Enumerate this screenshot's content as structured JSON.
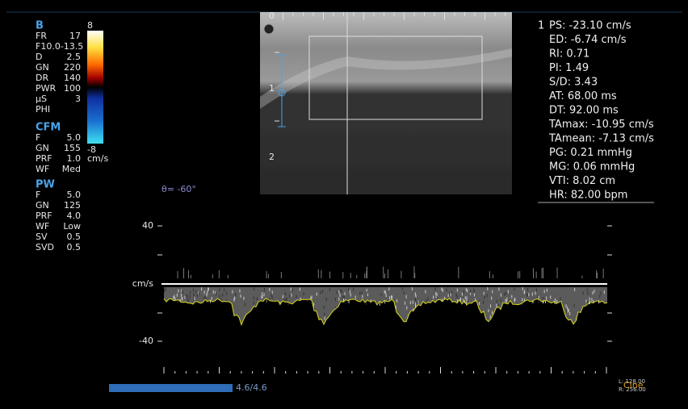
{
  "left_panel": {
    "b": {
      "title": "B",
      "params": [
        {
          "label": "FR",
          "value": "17"
        },
        {
          "label": "F10.0-13.5"
        },
        {
          "label": "D",
          "value": "2.5"
        },
        {
          "label": "GN",
          "value": "220"
        },
        {
          "label": "DR",
          "value": "140"
        },
        {
          "label": "PWR",
          "value": "100"
        },
        {
          "label": "µS",
          "value": "3"
        },
        {
          "label": "PHI"
        }
      ]
    },
    "color_bar": {
      "top": "8",
      "bottom": "-8",
      "unit": "cm/s"
    },
    "cfm": {
      "title": "CFM",
      "params": [
        {
          "label": "F",
          "value": "5.0"
        },
        {
          "label": "GN",
          "value": "155"
        },
        {
          "label": "PRF",
          "value": "1.0"
        },
        {
          "label": "WF",
          "value": "Med"
        }
      ]
    },
    "pw": {
      "title": "PW",
      "params": [
        {
          "label": "F",
          "value": "5.0"
        },
        {
          "label": "GN",
          "value": "125"
        },
        {
          "label": "PRF",
          "value": "4.0"
        },
        {
          "label": "WF",
          "value": "Low"
        },
        {
          "label": "SV",
          "value": "0.5"
        },
        {
          "label": "SVD",
          "value": "0.5"
        }
      ]
    }
  },
  "image": {
    "depth_labels": [
      "0",
      "1",
      "2"
    ],
    "angle": "θ= -60°"
  },
  "measurements": {
    "index": "1",
    "items": [
      "PS: -23.10 cm/s",
      "ED: -6.74  cm/s",
      "RI: 0.71",
      "PI: 1.49",
      "S/D: 3.43",
      "AT: 68.00  ms",
      "DT: 92.00  ms",
      "TAmax: -10.95 cm/s",
      "TAmean: -7.13  cm/s",
      "PG: 0.21   mmHg",
      "MG: 0.06   mmHg",
      "VTI: 8.02   cm",
      "HR: 82.00  bpm"
    ]
  },
  "spectrum": {
    "scale_top": "40",
    "unit": "cm/s",
    "scale_bottom": "-40"
  },
  "cine": {
    "progress": "4.6/4.6",
    "left": "L: 128.00",
    "right": "R: 256.00",
    "label": "Cine"
  }
}
